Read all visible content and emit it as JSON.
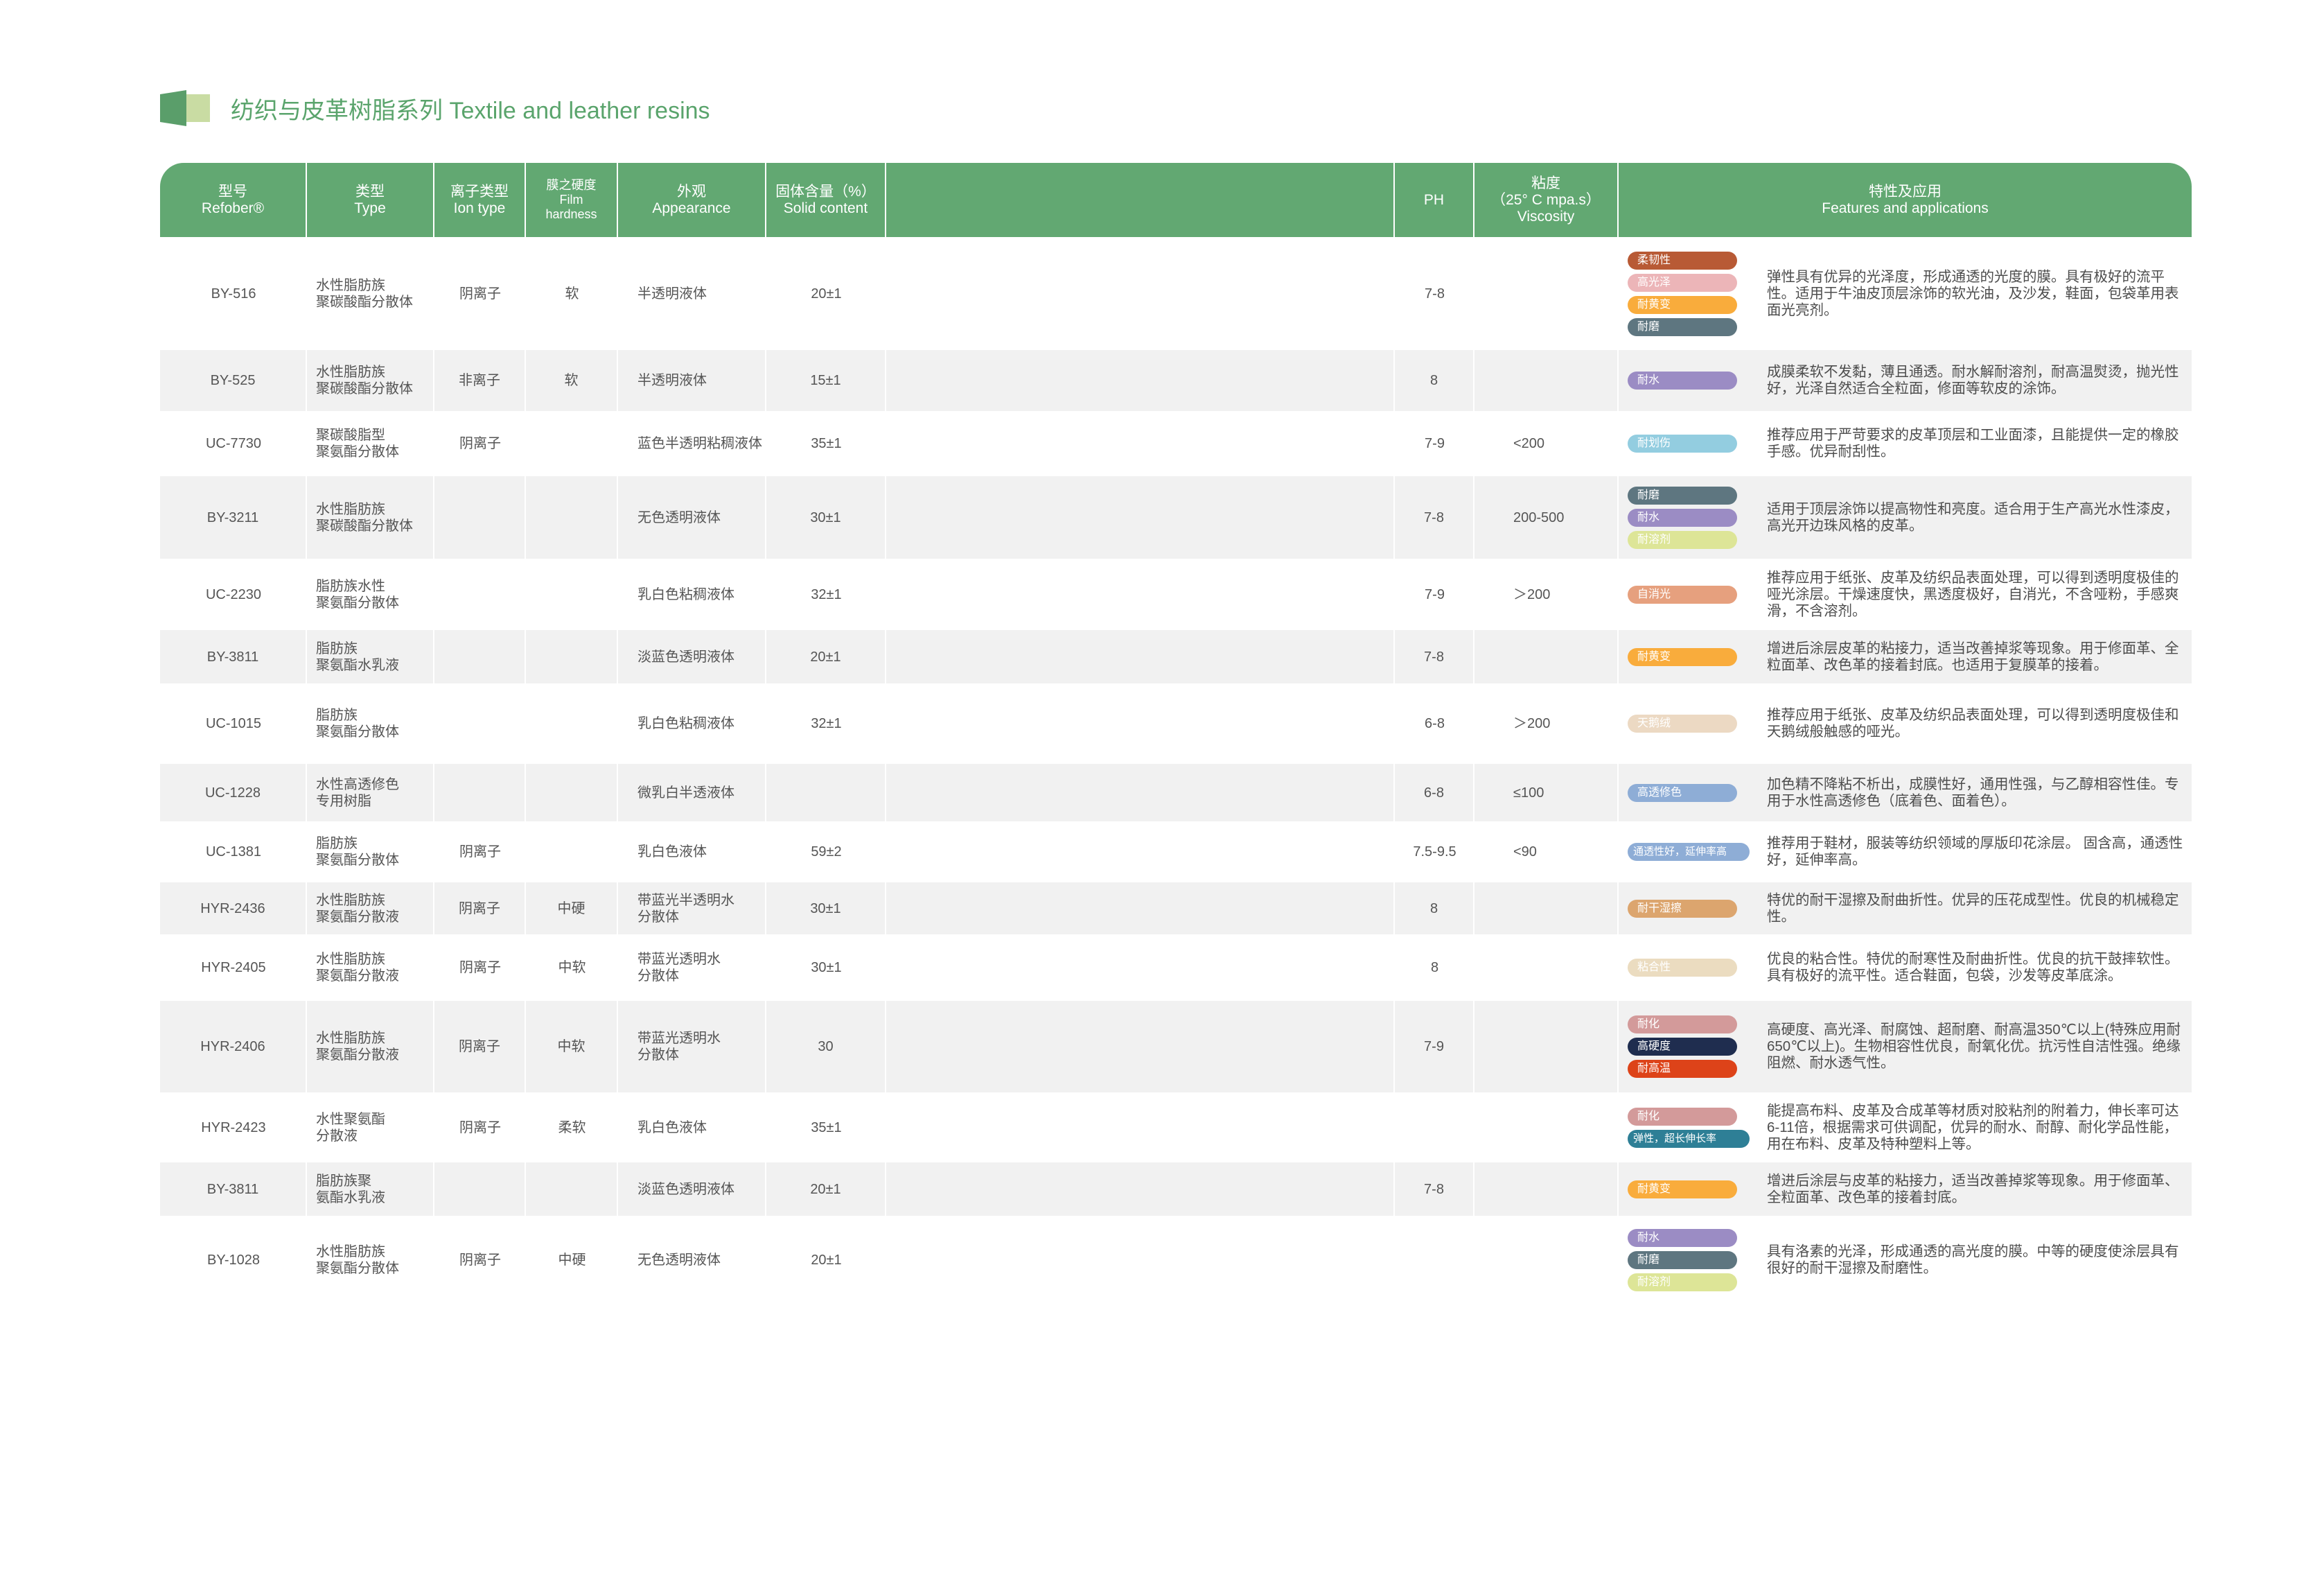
{
  "title": "纺织与皮革树脂系列 Textile and leather resins",
  "colors": {
    "header_green": "#62a872",
    "title_green": "#5aa46c",
    "row_gray": "#f1f1f1"
  },
  "header": {
    "model": [
      "型号",
      "Refober®"
    ],
    "type": [
      "类型",
      "Type"
    ],
    "ion": [
      "离子类型",
      "Ion type"
    ],
    "hardness": [
      "膜之硬度",
      "Film",
      "hardness"
    ],
    "appearance": [
      "外观",
      "Appearance"
    ],
    "solid": [
      "固体含量（%）",
      "Solid content"
    ],
    "blank": "",
    "ph": "PH",
    "viscosity": [
      "粘度",
      "（25° C mpa.s）",
      "Viscosity"
    ],
    "features": [
      "特性及应用",
      "Features and applications"
    ]
  },
  "rows": [
    {
      "model": "BY-516",
      "type": "水性脂肪族\n聚碳酸酯分散体",
      "ion": "阴离子",
      "hardness": "软",
      "appearance": "半透明液体",
      "solid": "20±1",
      "ph": "7-8",
      "viscosity": "",
      "tags": [
        {
          "label": "柔韧性",
          "color": "#b85a35"
        },
        {
          "label": "高光泽",
          "color": "#ecb5b8"
        },
        {
          "label": "耐黄变",
          "color": "#f9ac3c"
        },
        {
          "label": "耐磨",
          "color": "#5e7680"
        }
      ],
      "features": "弹性具有优异的光泽度，形成通透的光度的膜。具有极好的流平性。适用于牛油皮顶层涂饰的软光油，及沙发，鞋面，包袋革用表面光亮剂。"
    },
    {
      "model": "BY-525",
      "type": "水性脂肪族\n聚碳酸酯分散体",
      "ion": "非离子",
      "hardness": "软",
      "appearance": "半透明液体",
      "solid": "15±1",
      "ph": "8",
      "viscosity": "",
      "tags": [
        {
          "label": "耐水",
          "color": "#9b8cc4"
        }
      ],
      "features": "成膜柔软不发黏，薄且通透。耐水解耐溶剂，耐高温熨烫，抛光性好，光泽自然适合全粒面，修面等软皮的涂饰。"
    },
    {
      "model": "UC-7730",
      "type": "聚碳酸脂型\n聚氨酯分散体",
      "ion": "阴离子",
      "hardness": "",
      "appearance": "蓝色半透明粘稠液体",
      "solid": "35±1",
      "ph": "7-9",
      "viscosity": "<200",
      "tags": [
        {
          "label": "耐划伤",
          "color": "#93cde0"
        }
      ],
      "features": "推荐应用于严苛要求的皮革顶层和工业面漆，且能提供一定的橡胶手感。优异耐刮性。"
    },
    {
      "model": "BY-3211",
      "type": "水性脂肪族\n聚碳酸酯分散体",
      "ion": "",
      "hardness": "",
      "appearance": "无色透明液体",
      "solid": "30±1",
      "ph": "7-8",
      "viscosity": "200-500",
      "tags": [
        {
          "label": "耐磨",
          "color": "#5e7680"
        },
        {
          "label": "耐水",
          "color": "#9b8cc4"
        },
        {
          "label": "耐溶剂",
          "color": "#dde597"
        }
      ],
      "features": "适用于顶层涂饰以提高物性和亮度。适合用于生产高光水性漆皮，高光开边珠风格的皮革。"
    },
    {
      "model": "UC-2230",
      "type": "脂肪族水性\n聚氨酯分散体",
      "ion": "",
      "hardness": "",
      "appearance": "乳白色粘稠液体",
      "solid": "32±1",
      "ph": "7-9",
      "viscosity": "＞200",
      "tags": [
        {
          "label": "自消光",
          "color": "#e6a07e"
        }
      ],
      "features": "推荐应用于纸张、皮革及纺织品表面处理，可以得到透明度极佳的哑光涂层。干燥速度快，黑透度极好，自消光，不含哑粉，手感爽滑，不含溶剂。"
    },
    {
      "model": "BY-3811",
      "type": "脂肪族\n聚氨酯水乳液",
      "ion": "",
      "hardness": "",
      "appearance": "淡蓝色透明液体",
      "solid": "20±1",
      "ph": "7-8",
      "viscosity": "",
      "tags": [
        {
          "label": "耐黄变",
          "color": "#f9ac3c"
        }
      ],
      "features": "增进后涂层皮革的粘接力，适当改善掉浆等现象。用于修面革、全粒面革、改色革的接着封底。也适用于复膜革的接着。"
    },
    {
      "model": "UC-1015",
      "type": "脂肪族\n聚氨酯分散体",
      "ion": "",
      "hardness": "",
      "appearance": "乳白色粘稠液体",
      "solid": "32±1",
      "ph": "6-8",
      "viscosity": "＞200",
      "tags": [
        {
          "label": "天鹅绒",
          "color": "#ecd9c3"
        }
      ],
      "features": "推荐应用于纸张、皮革及纺织品表面处理，可以得到透明度极佳和天鹅绒般触感的哑光。"
    },
    {
      "model": "UC-1228",
      "type": "水性高透修色\n专用树脂",
      "ion": "",
      "hardness": "",
      "appearance": "微乳白半透液体",
      "solid": "",
      "ph": "6-8",
      "viscosity": "≤100",
      "tags": [
        {
          "label": "高透修色",
          "color": "#8eadd6"
        }
      ],
      "features": "加色精不降粘不析出，成膜性好，通用性强，与乙醇相容性佳。专用于水性高透修色（底着色、面着色）。"
    },
    {
      "model": "UC-1381",
      "type": "脂肪族\n聚氨酯分散体",
      "ion": "阴离子",
      "hardness": "",
      "appearance": "乳白色液体",
      "solid": "59±2",
      "ph": "7.5-9.5",
      "viscosity": "<90",
      "tags": [
        {
          "label": "通透性好，延伸率高",
          "color": "#8eadd6"
        }
      ],
      "features": "推荐用于鞋材，服装等纺织领域的厚版印花涂层。 固含高，通透性好，延伸率高。"
    },
    {
      "model": "HYR-2436",
      "type": "水性脂肪族\n聚氨酯分散液",
      "ion": "阴离子",
      "hardness": "中硬",
      "appearance": "带蓝光半透明水\n分散体",
      "solid": "30±1",
      "ph": "8",
      "viscosity": "",
      "tags": [
        {
          "label": "耐干湿擦",
          "color": "#dca56e"
        }
      ],
      "features": "特优的耐干湿擦及耐曲折性。优异的压花成型性。优良的机械稳定性。"
    },
    {
      "model": "HYR-2405",
      "type": "水性脂肪族\n聚氨酯分散液",
      "ion": "阴离子",
      "hardness": "中软",
      "appearance": "带蓝光透明水\n分散体",
      "solid": "30±1",
      "ph": "8",
      "viscosity": "",
      "tags": [
        {
          "label": "粘合性",
          "color": "#ebdcc0"
        }
      ],
      "features": "优良的粘合性。特优的耐寒性及耐曲折性。优良的抗干鼓摔软性。具有极好的流平性。适合鞋面，包袋，沙发等皮革底涂。"
    },
    {
      "model": "HYR-2406",
      "type": "水性脂肪族\n聚氨酯分散液",
      "ion": "阴离子",
      "hardness": "中软",
      "appearance": "带蓝光透明水\n分散体",
      "solid": "30",
      "ph": "7-9",
      "viscosity": "",
      "tags": [
        {
          "label": "耐化",
          "color": "#d39a9a"
        },
        {
          "label": "高硬度",
          "color": "#1f2d4f"
        },
        {
          "label": "耐高温",
          "color": "#dd4319"
        }
      ],
      "features": "高硬度、高光泽、耐腐蚀、超耐磨、耐高温350℃以上(特殊应用耐650℃以上)。生物相容性优良，耐氧化优。抗污性自洁性强。绝缘阻燃、耐水透气性。"
    },
    {
      "model": "HYR-2423",
      "type": "水性聚氨酯\n分散液",
      "ion": "阴离子",
      "hardness": "柔软",
      "appearance": "乳白色液体",
      "solid": "35±1",
      "ph": "",
      "viscosity": "",
      "tags": [
        {
          "label": "耐化",
          "color": "#d39a9a"
        },
        {
          "label": "弹性，超长伸长率",
          "color": "#2e7f96"
        }
      ],
      "features": "能提高布料、皮革及合成革等材质对胶粘剂的附着力，伸长率可达6-11倍，根据需求可供调配，优异的耐水、耐醇、耐化学品性能，用在布料、皮革及特种塑料上等。"
    },
    {
      "model": "BY-3811",
      "type": "脂肪族聚\n氨酯水乳液",
      "ion": "",
      "hardness": "",
      "appearance": "淡蓝色透明液体",
      "solid": "20±1",
      "ph": "7-8",
      "viscosity": "",
      "tags": [
        {
          "label": "耐黄变",
          "color": "#f9ac3c"
        }
      ],
      "features": "增进后涂层与皮革的粘接力，适当改善掉浆等现象。用于修面革、全粒面革、改色革的接着封底。"
    },
    {
      "model": "BY-1028",
      "type": "水性脂肪族\n聚氨酯分散体",
      "ion": "阴离子",
      "hardness": "中硬",
      "appearance": "无色透明液体",
      "solid": "20±1",
      "ph": "",
      "viscosity": "",
      "tags": [
        {
          "label": "耐水",
          "color": "#9b8cc4"
        },
        {
          "label": "耐磨",
          "color": "#5e7680"
        },
        {
          "label": "耐溶剂",
          "color": "#dde597"
        }
      ],
      "features": "具有洛素的光泽，形成通透的高光度的膜。中等的硬度使涂层具有很好的耐干湿擦及耐磨性。"
    }
  ]
}
